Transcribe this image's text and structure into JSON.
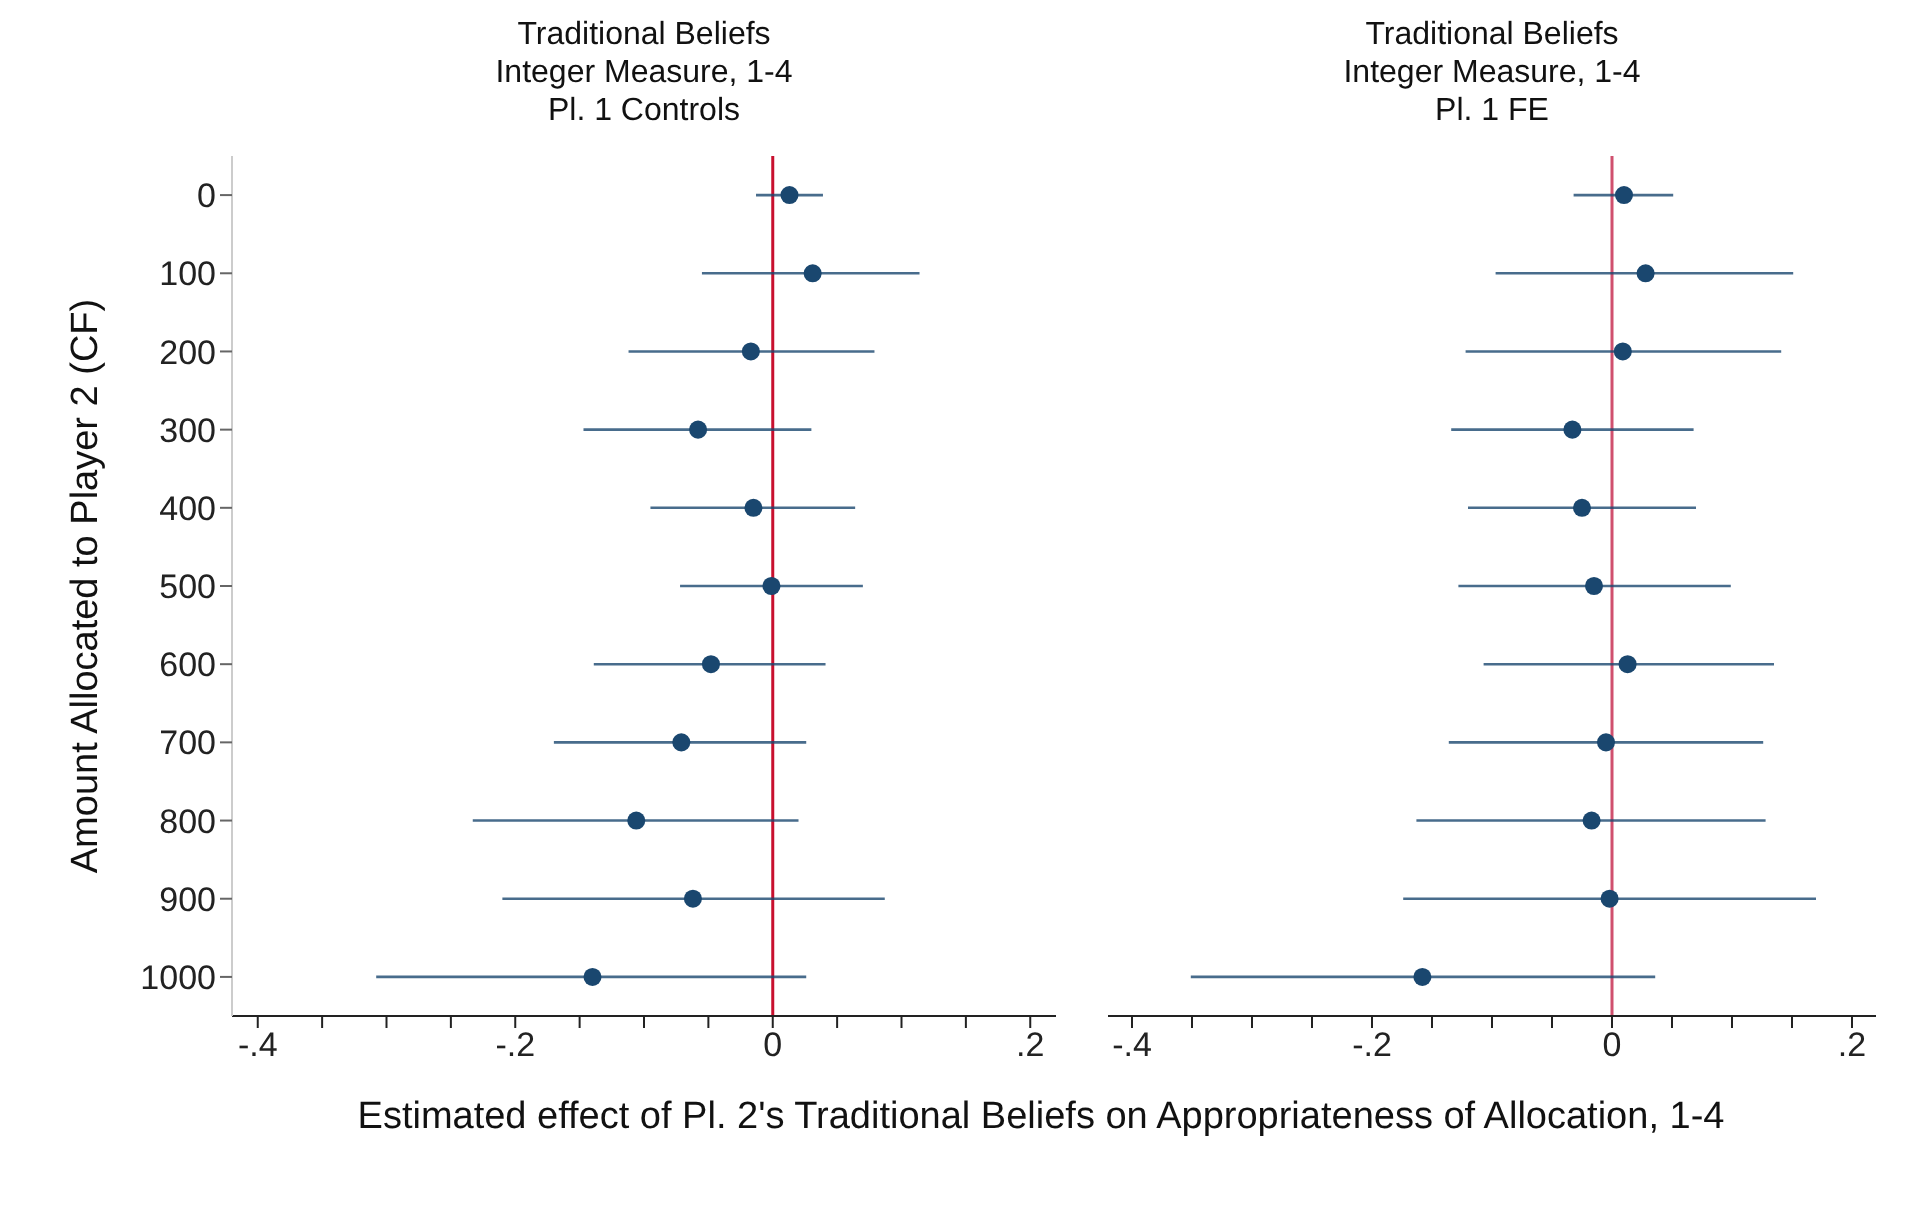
{
  "chart_data": [
    {
      "type": "scatter",
      "orientation": "horizontal",
      "title": "Traditional Beliefs\nInteger Measure, 1-4\nPl. 1 Controls",
      "ylabel": "Amount Allocated to Player 2 (CF)",
      "xlabel": "Estimated effect of Pl. 2's Traditional Beliefs on Appropriateness of Allocation, 1-4",
      "categories": [
        "0",
        "100",
        "200",
        "300",
        "400",
        "500",
        "600",
        "700",
        "800",
        "900",
        "1000"
      ],
      "series": [
        {
          "color": "#1a476f",
          "values": [
            0.013,
            0.031,
            -0.017,
            -0.058,
            -0.015,
            -0.001,
            -0.048,
            -0.071,
            -0.106,
            -0.062,
            -0.14
          ],
          "errors": [
            [
              -0.013,
              0.039
            ],
            [
              -0.055,
              0.114
            ],
            [
              -0.112,
              0.079
            ],
            [
              -0.147,
              0.03
            ],
            [
              -0.095,
              0.064
            ],
            [
              -0.072,
              0.07
            ],
            [
              -0.139,
              0.041
            ],
            [
              -0.17,
              0.026
            ],
            [
              -0.233,
              0.02
            ],
            [
              -0.21,
              0.087
            ],
            [
              -0.308,
              0.026
            ]
          ]
        }
      ],
      "xlim": [
        -0.42,
        0.22
      ],
      "xticks": [
        {
          "value": -0.4,
          "label": "-.4"
        },
        {
          "value": -0.35,
          "label": null
        },
        {
          "value": -0.3,
          "label": null
        },
        {
          "value": -0.25,
          "label": null
        },
        {
          "value": -0.2,
          "label": "-.2"
        },
        {
          "value": -0.15,
          "label": null
        },
        {
          "value": -0.1,
          "label": null
        },
        {
          "value": -0.05,
          "label": null
        },
        {
          "value": 0,
          "label": "0"
        },
        {
          "value": 0.05,
          "label": null
        },
        {
          "value": 0.1,
          "label": null
        },
        {
          "value": 0.15,
          "label": null
        },
        {
          "value": 0.2,
          "label": ".2"
        }
      ],
      "ref_lines": [
        {
          "axis": "x",
          "value": 0,
          "color": "#c8102e"
        }
      ],
      "marker": "circle",
      "grid": false,
      "legend": false
    },
    {
      "type": "scatter",
      "orientation": "horizontal",
      "title": "Traditional Beliefs\nInteger Measure, 1-4\nPl. 1 FE",
      "tick_labels": "x",
      "categories": [
        "0",
        "100",
        "200",
        "300",
        "400",
        "500",
        "600",
        "700",
        "800",
        "900",
        "1000"
      ],
      "series": [
        {
          "color": "#1a476f",
          "values": [
            0.01,
            0.028,
            0.009,
            -0.033,
            -0.025,
            -0.015,
            0.013,
            -0.005,
            -0.017,
            -0.002,
            -0.158
          ],
          "errors": [
            [
              -0.032,
              0.051
            ],
            [
              -0.097,
              0.151
            ],
            [
              -0.122,
              0.141
            ],
            [
              -0.134,
              0.068
            ],
            [
              -0.12,
              0.07
            ],
            [
              -0.128,
              0.099
            ],
            [
              -0.107,
              0.135
            ],
            [
              -0.136,
              0.126
            ],
            [
              -0.163,
              0.128
            ],
            [
              -0.174,
              0.17
            ],
            [
              -0.351,
              0.036
            ]
          ]
        }
      ],
      "xlim": [
        -0.42,
        0.22
      ],
      "xticks": [
        {
          "value": -0.4,
          "label": "-.4"
        },
        {
          "value": -0.35,
          "label": null
        },
        {
          "value": -0.3,
          "label": null
        },
        {
          "value": -0.25,
          "label": null
        },
        {
          "value": -0.2,
          "label": "-.2"
        },
        {
          "value": -0.15,
          "label": null
        },
        {
          "value": -0.1,
          "label": null
        },
        {
          "value": -0.05,
          "label": null
        },
        {
          "value": 0,
          "label": "0"
        },
        {
          "value": 0.05,
          "label": null
        },
        {
          "value": 0.1,
          "label": null
        },
        {
          "value": 0.15,
          "label": null
        },
        {
          "value": 0.2,
          "label": ".2"
        }
      ],
      "ref_lines": [
        {
          "axis": "x",
          "value": 0,
          "color": "#d0506e"
        }
      ],
      "marker": "circle",
      "grid": false,
      "legend": false
    }
  ]
}
